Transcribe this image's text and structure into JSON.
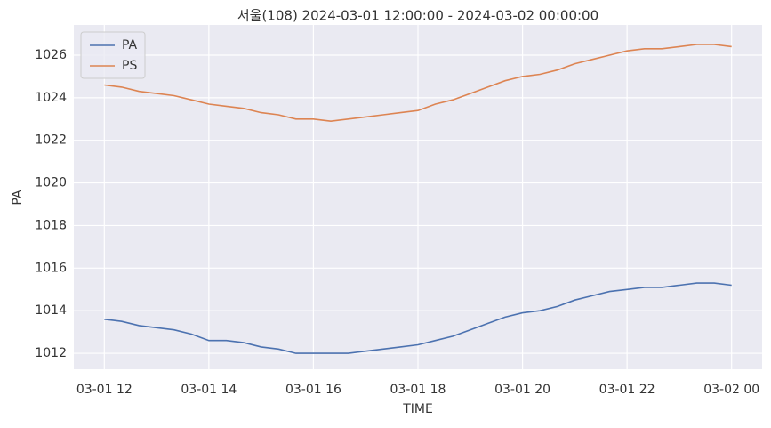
{
  "chart_data": {
    "type": "line",
    "title": "서울(108) 2024-03-01 12:00:00 - 2024-03-02 00:00:00",
    "xlabel": "TIME",
    "ylabel": "PA",
    "x": [
      "03-01 12:00",
      "03-01 12:20",
      "03-01 12:40",
      "03-01 13:00",
      "03-01 13:20",
      "03-01 13:40",
      "03-01 14:00",
      "03-01 14:20",
      "03-01 14:40",
      "03-01 15:00",
      "03-01 15:20",
      "03-01 15:40",
      "03-01 16:00",
      "03-01 16:20",
      "03-01 16:40",
      "03-01 17:00",
      "03-01 17:20",
      "03-01 17:40",
      "03-01 18:00",
      "03-01 18:20",
      "03-01 18:40",
      "03-01 19:00",
      "03-01 19:20",
      "03-01 19:40",
      "03-01 20:00",
      "03-01 20:20",
      "03-01 20:40",
      "03-01 21:00",
      "03-01 21:20",
      "03-01 21:40",
      "03-01 22:00",
      "03-01 22:20",
      "03-01 22:40",
      "03-01 23:00",
      "03-01 23:20",
      "03-01 23:40",
      "03-02 00:00"
    ],
    "series": [
      {
        "name": "PA",
        "color": "#4c72b0",
        "values": [
          1013.6,
          1013.5,
          1013.3,
          1013.2,
          1013.1,
          1012.9,
          1012.6,
          1012.6,
          1012.5,
          1012.3,
          1012.2,
          1012.0,
          1012.0,
          1012.0,
          1012.0,
          1012.1,
          1012.2,
          1012.3,
          1012.4,
          1012.6,
          1012.8,
          1013.1,
          1013.4,
          1013.7,
          1013.9,
          1014.0,
          1014.2,
          1014.5,
          1014.7,
          1014.9,
          1015.0,
          1015.1,
          1015.1,
          1015.2,
          1015.3,
          1015.3,
          1015.2
        ]
      },
      {
        "name": "PS",
        "color": "#dd8452",
        "values": [
          1024.6,
          1024.5,
          1024.3,
          1024.2,
          1024.1,
          1023.9,
          1023.7,
          1023.6,
          1023.5,
          1023.3,
          1023.2,
          1023.0,
          1023.0,
          1022.9,
          1023.0,
          1023.1,
          1023.2,
          1023.3,
          1023.4,
          1023.7,
          1023.9,
          1024.2,
          1024.5,
          1024.8,
          1025.0,
          1025.1,
          1025.3,
          1025.6,
          1025.8,
          1026.0,
          1026.2,
          1026.3,
          1026.3,
          1026.4,
          1026.5,
          1026.5,
          1026.4
        ]
      }
    ],
    "xlim": [
      "03-01 11:25",
      "03-02 00:35"
    ],
    "xticks": [
      "03-01 12",
      "03-01 14",
      "03-01 16",
      "03-01 18",
      "03-01 20",
      "03-01 22",
      "03-02 00"
    ],
    "ylim": [
      1011.25,
      1027.42
    ],
    "yticks": [
      1012,
      1014,
      1016,
      1018,
      1020,
      1022,
      1024,
      1026
    ],
    "grid": true,
    "legend": "upper left"
  }
}
